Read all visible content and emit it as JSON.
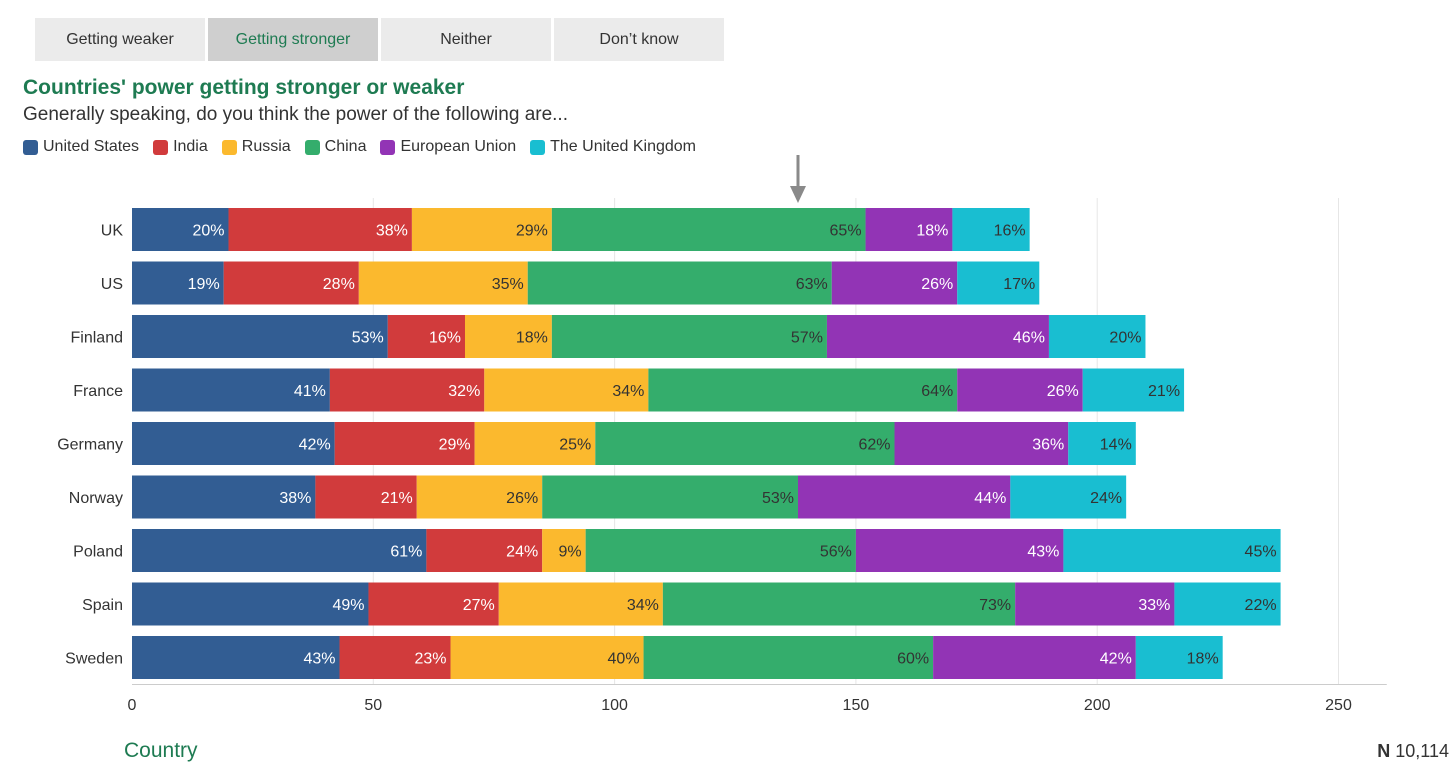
{
  "tabs": [
    {
      "label": "Getting weaker",
      "active": false
    },
    {
      "label": "Getting stronger",
      "active": true
    },
    {
      "label": "Neither",
      "active": false
    },
    {
      "label": "Don’t know",
      "active": false
    }
  ],
  "title": "Countries' power getting stronger or weaker",
  "subtitle": "Generally speaking, do you think the power of the following are...",
  "legend": [
    {
      "name": "United States",
      "color": "#325d93"
    },
    {
      "name": "India",
      "color": "#d13b3c"
    },
    {
      "name": "Russia",
      "color": "#fbb92e"
    },
    {
      "name": "China",
      "color": "#34ad6c"
    },
    {
      "name": "European Union",
      "color": "#9234b5"
    },
    {
      "name": "The United Kingdom",
      "color": "#19bed1"
    }
  ],
  "chart_data": {
    "type": "bar",
    "orientation": "horizontal",
    "stacked": true,
    "categories": [
      "UK",
      "US",
      "Finland",
      "France",
      "Germany",
      "Norway",
      "Poland",
      "Spain",
      "Sweden"
    ],
    "series": [
      {
        "name": "United States",
        "color": "#325d93",
        "label_color": "#ffffff",
        "values": [
          20,
          19,
          53,
          41,
          42,
          38,
          61,
          49,
          43
        ]
      },
      {
        "name": "India",
        "color": "#d13b3c",
        "label_color": "#ffffff",
        "values": [
          38,
          28,
          16,
          32,
          29,
          21,
          24,
          27,
          23
        ]
      },
      {
        "name": "Russia",
        "color": "#fbb92e",
        "label_color": "#333333",
        "values": [
          29,
          35,
          18,
          34,
          25,
          26,
          9,
          34,
          40
        ]
      },
      {
        "name": "China",
        "color": "#34ad6c",
        "label_color": "#333333",
        "values": [
          65,
          63,
          57,
          64,
          62,
          53,
          56,
          73,
          60
        ]
      },
      {
        "name": "European Union",
        "color": "#9234b5",
        "label_color": "#ffffff",
        "values": [
          18,
          26,
          46,
          26,
          36,
          44,
          43,
          33,
          42
        ]
      },
      {
        "name": "The United Kingdom",
        "color": "#19bed1",
        "label_color": "#333333",
        "values": [
          16,
          17,
          20,
          21,
          14,
          24,
          45,
          22,
          18
        ]
      }
    ],
    "value_suffix": "%",
    "xlim": [
      0,
      260
    ],
    "xticks": [
      0,
      50,
      100,
      150,
      200,
      250
    ],
    "grid": true,
    "marker_value": 138
  },
  "footer": {
    "axis_label": "Country",
    "n_label": "N",
    "n_value": "10,114"
  }
}
